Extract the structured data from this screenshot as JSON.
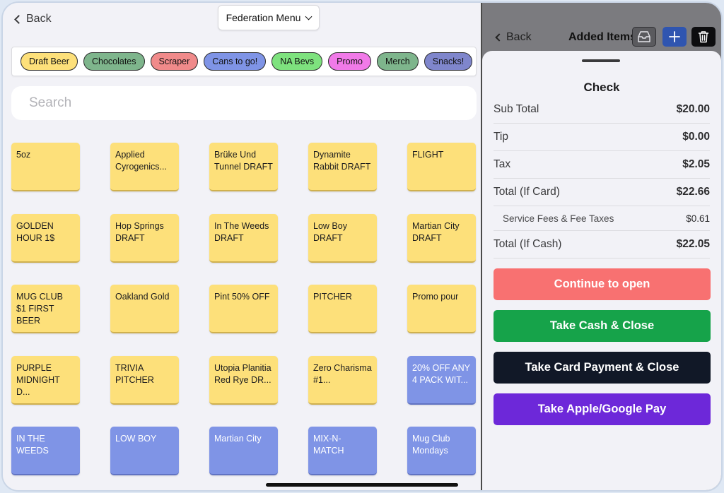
{
  "left": {
    "back_label": "Back",
    "menu_select": "Federation Menu",
    "categories": [
      {
        "label": "Draft Beer",
        "color": "#fde07a"
      },
      {
        "label": "Chocolates",
        "color": "#7eb58c"
      },
      {
        "label": "Scraper",
        "color": "#f08a8a"
      },
      {
        "label": "Cans to go!",
        "color": "#7f94e6"
      },
      {
        "label": "NA Bevs",
        "color": "#7ee27e"
      },
      {
        "label": "Promo",
        "color": "#f17ae8"
      },
      {
        "label": "Merch",
        "color": "#7eb58c"
      },
      {
        "label": "Snacks!",
        "color": "#7f86cc"
      }
    ],
    "search_placeholder": "Search",
    "items": [
      {
        "label": "5oz",
        "color": "yellow"
      },
      {
        "label": "Applied Cyrogenics...",
        "color": "yellow"
      },
      {
        "label": "Brüke Und Tunnel DRAFT",
        "color": "yellow"
      },
      {
        "label": "Dynamite Rabbit DRAFT",
        "color": "yellow"
      },
      {
        "label": "FLIGHT",
        "color": "yellow"
      },
      {
        "label": "GOLDEN HOUR 1$",
        "color": "yellow"
      },
      {
        "label": "Hop Springs DRAFT",
        "color": "yellow"
      },
      {
        "label": "In The Weeds DRAFT",
        "color": "yellow"
      },
      {
        "label": "Low Boy DRAFT",
        "color": "yellow"
      },
      {
        "label": "Martian City DRAFT",
        "color": "yellow"
      },
      {
        "label": "MUG CLUB $1 FIRST BEER",
        "color": "yellow"
      },
      {
        "label": "Oakland Gold",
        "color": "yellow"
      },
      {
        "label": "Pint 50% OFF",
        "color": "yellow"
      },
      {
        "label": "PITCHER",
        "color": "yellow"
      },
      {
        "label": "Promo pour",
        "color": "yellow"
      },
      {
        "label": "PURPLE MIDNIGHT D...",
        "color": "yellow"
      },
      {
        "label": "TRIVIA PITCHER",
        "color": "yellow"
      },
      {
        "label": "Utopia Planitia Red Rye DR...",
        "color": "yellow"
      },
      {
        "label": "Zero Charisma #1...",
        "color": "yellow"
      },
      {
        "label": "20% OFF ANY 4 PACK WIT...",
        "color": "blue"
      },
      {
        "label": "IN THE WEEDS",
        "color": "blue"
      },
      {
        "label": "LOW BOY",
        "color": "blue"
      },
      {
        "label": "Martian City",
        "color": "blue"
      },
      {
        "label": "MIX-N-MATCH",
        "color": "blue"
      },
      {
        "label": "Mug Club Mondays",
        "color": "blue"
      }
    ]
  },
  "right": {
    "back_label": "Back",
    "title": "Added Items",
    "icons": [
      "inbox-icon",
      "plus-icon",
      "trash-icon"
    ],
    "check": {
      "title": "Check",
      "rows": [
        {
          "label": "Sub Total",
          "value": "$20.00",
          "type": "main"
        },
        {
          "label": "Tip",
          "value": "$0.00",
          "type": "main"
        },
        {
          "label": "Tax",
          "value": "$2.05",
          "type": "main"
        },
        {
          "label": "Total (If Card)",
          "value": "$22.66",
          "type": "main"
        },
        {
          "label": "Service Fees & Fee Taxes",
          "value": "$0.61",
          "type": "sub"
        },
        {
          "label": "Total (If Cash)",
          "value": "$22.05",
          "type": "main"
        }
      ]
    },
    "actions": [
      {
        "label": "Continue to open",
        "color": "#f87171"
      },
      {
        "label": "Take Cash & Close",
        "color": "#16a34a"
      },
      {
        "label": "Take Card Payment & Close",
        "color": "#111827"
      },
      {
        "label": "Take Apple/Google Pay",
        "color": "#6d28d9"
      }
    ]
  }
}
